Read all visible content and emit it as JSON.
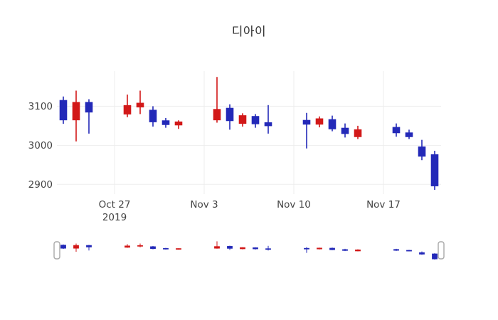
{
  "figure": {
    "background": "#ffffff",
    "tick_color": "#444444",
    "grid_color": "#ededed"
  },
  "chart_data": {
    "type": "candlestick",
    "title": "디아이",
    "x": [
      "2019-10-23",
      "2019-10-24",
      "2019-10-25",
      "2019-10-28",
      "2019-10-29",
      "2019-10-30",
      "2019-10-31",
      "2019-11-01",
      "2019-11-04",
      "2019-11-05",
      "2019-11-06",
      "2019-11-07",
      "2019-11-08",
      "2019-11-11",
      "2019-11-12",
      "2019-11-13",
      "2019-11-14",
      "2019-11-15",
      "2019-11-18",
      "2019-11-19",
      "2019-11-20",
      "2019-11-21"
    ],
    "open": [
      3115,
      3065,
      3110,
      3080,
      3098,
      3090,
      3063,
      3052,
      3065,
      3095,
      3056,
      3074,
      3058,
      3064,
      3054,
      3066,
      3044,
      3022,
      3046,
      3032,
      2996,
      2976
    ],
    "high": [
      3125,
      3140,
      3118,
      3130,
      3140,
      3100,
      3070,
      3064,
      3175,
      3105,
      3082,
      3080,
      3103,
      3083,
      3074,
      3076,
      3056,
      3050,
      3056,
      3040,
      3014,
      2986
    ],
    "low": [
      3055,
      3010,
      3030,
      3072,
      3080,
      3048,
      3045,
      3042,
      3058,
      3040,
      3048,
      3045,
      3030,
      2992,
      3046,
      3036,
      3020,
      3016,
      3022,
      3016,
      2962,
      2886
    ],
    "close": [
      3065,
      3110,
      3085,
      3102,
      3108,
      3060,
      3053,
      3060,
      3092,
      3063,
      3076,
      3055,
      3050,
      3054,
      3068,
      3042,
      3030,
      3040,
      3032,
      3022,
      2972,
      2896
    ],
    "increasing_color": "#d21818",
    "decreasing_color": "#2329b8",
    "ylim": [
      2875,
      3190
    ],
    "yticks": [
      2900,
      3000,
      3100
    ],
    "xticks": [
      {
        "date": "2019-10-27",
        "label": "Oct 27",
        "sublabel": "2019"
      },
      {
        "date": "2019-11-03",
        "label": "Nov 3"
      },
      {
        "date": "2019-11-10",
        "label": "Nov 10"
      },
      {
        "date": "2019-11-17",
        "label": "Nov 17"
      }
    ],
    "grid": true,
    "legend": "none",
    "rangeslider": true
  }
}
